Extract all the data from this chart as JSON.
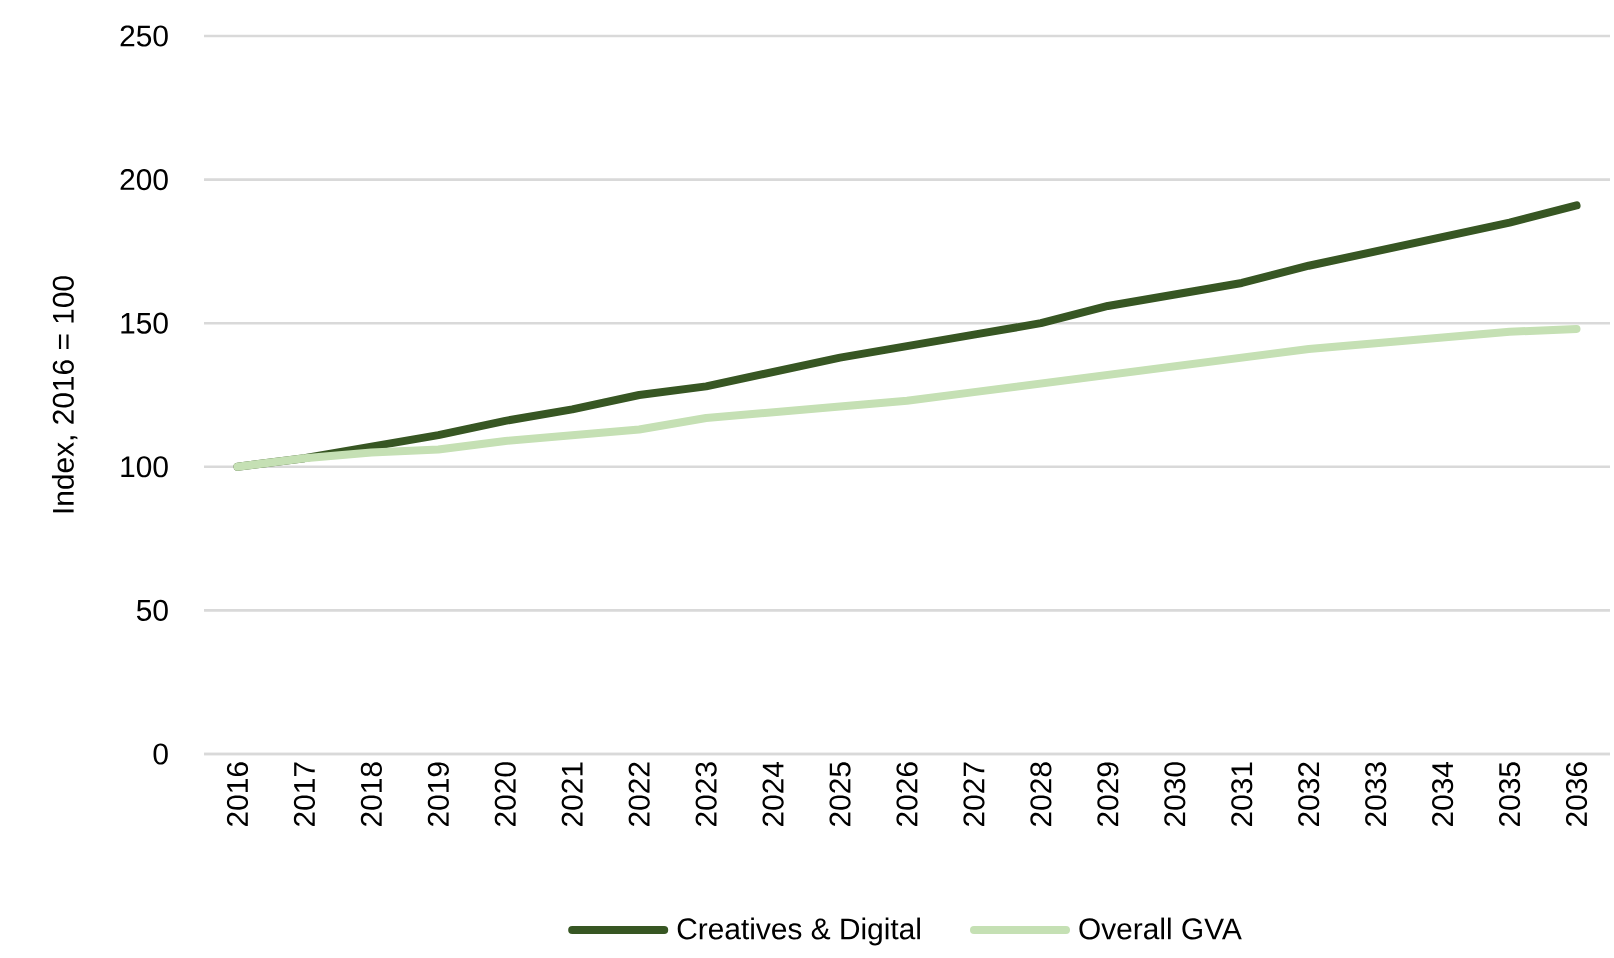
{
  "chart_data": {
    "type": "line",
    "ylabel": "Index, 2016 = 100",
    "categories": [
      "2016",
      "2017",
      "2018",
      "2019",
      "2020",
      "2021",
      "2022",
      "2023",
      "2024",
      "2025",
      "2026",
      "2027",
      "2028",
      "2029",
      "2030",
      "2031",
      "2032",
      "2033",
      "2034",
      "2035",
      "2036"
    ],
    "series": [
      {
        "name": "Creatives & Digital",
        "color": "#375623",
        "values": [
          100,
          103,
          107,
          111,
          116,
          120,
          125,
          128,
          133,
          138,
          142,
          146,
          150,
          156,
          160,
          164,
          170,
          175,
          180,
          185,
          191
        ]
      },
      {
        "name": "Overall GVA",
        "color": "#c5e0b4",
        "values": [
          100,
          103,
          105,
          106,
          109,
          111,
          113,
          117,
          119,
          121,
          123,
          126,
          129,
          132,
          135,
          138,
          141,
          143,
          145,
          147,
          148
        ]
      }
    ],
    "ylim": [
      0,
      250
    ],
    "yticks": [
      0,
      50,
      100,
      150,
      200,
      250
    ],
    "grid": "y",
    "legend": "bottom",
    "marker": "none",
    "line_style": "solid"
  }
}
